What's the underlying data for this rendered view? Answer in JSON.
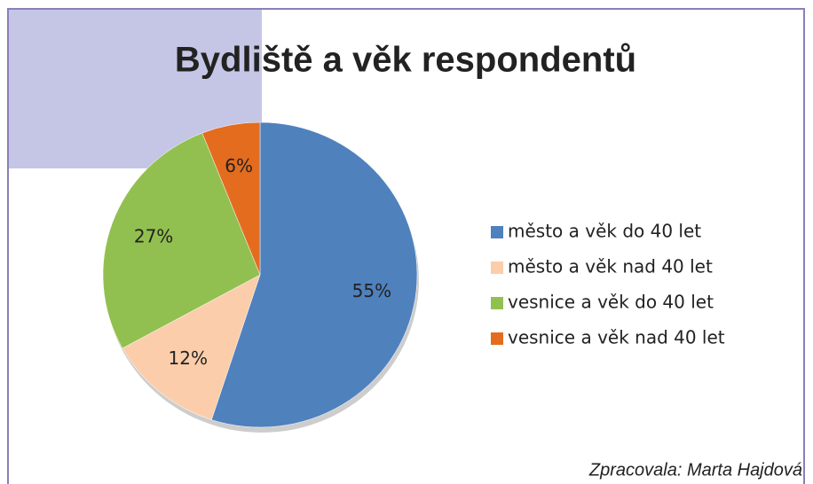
{
  "chart_data": {
    "type": "pie",
    "title": "Bydliště a věk respondentů",
    "categories": [
      "město a věk do 40 let",
      "město a věk nad 40 let",
      "vesnice a věk do 40 let",
      "vesnice a věk nad 40 let"
    ],
    "values": [
      55,
      12,
      27,
      6
    ],
    "value_labels": [
      "55%",
      "12%",
      "27%",
      "6%"
    ],
    "colors": [
      "#4f81bd",
      "#fbcdab",
      "#92c050",
      "#e46c1f"
    ],
    "legend": "right",
    "annotation": "Zpracovala: Marta Hajdová"
  }
}
